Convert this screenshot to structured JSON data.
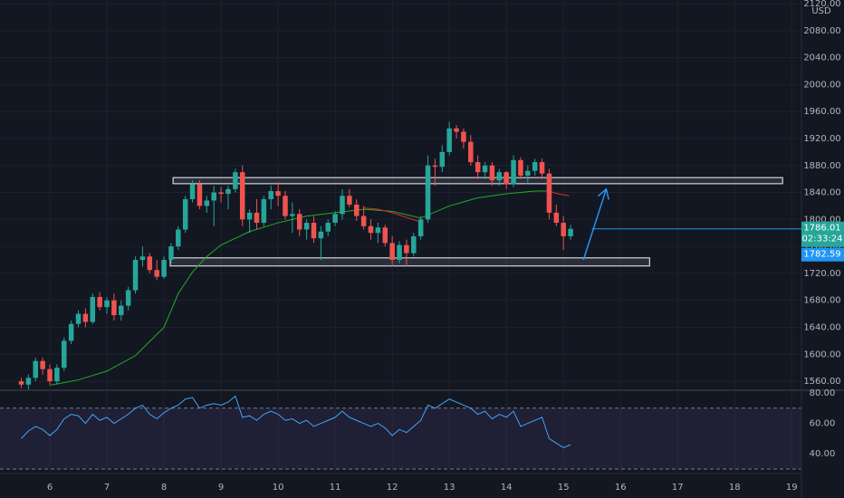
{
  "chart_data": {
    "type": "candlestick",
    "up_color": "#26a69a",
    "down_color": "#ef5350",
    "currency": "USD",
    "xlim": [
      5.127,
      19.17
    ],
    "xticks": [
      6,
      7,
      8,
      9,
      10,
      11,
      12,
      13,
      14,
      15,
      16,
      17,
      18,
      19
    ],
    "ylim": [
      1548,
      2125.4
    ],
    "yticks": [
      {
        "value": 1560,
        "label": "1560.00"
      },
      {
        "value": 1600,
        "label": "1600.00"
      },
      {
        "value": 1640,
        "label": "1640.00"
      },
      {
        "value": 1680,
        "label": "1680.00"
      },
      {
        "value": 1720,
        "label": "1720.00"
      },
      {
        "value": 1760,
        "label": "1760.00"
      },
      {
        "value": 1800,
        "label": "1800.00"
      },
      {
        "value": 1840,
        "label": "1840.00"
      },
      {
        "value": 1880,
        "label": "1880.00"
      },
      {
        "value": 1920,
        "label": "1920.00"
      },
      {
        "value": 1960,
        "label": "1960.00"
      },
      {
        "value": 2000,
        "label": "2000.00"
      },
      {
        "value": 2040,
        "label": "2040.00"
      },
      {
        "value": 2080,
        "label": "2080.00"
      },
      {
        "value": 2120,
        "label": "2120.00"
      }
    ],
    "grid": true,
    "x": [
      5.5,
      5.625,
      5.75,
      5.875,
      6,
      6.125,
      6.25,
      6.375,
      6.5,
      6.625,
      6.75,
      6.875,
      7,
      7.125,
      7.25,
      7.375,
      7.5,
      7.625,
      7.75,
      7.875,
      8,
      8.125,
      8.25,
      8.375,
      8.5,
      8.625,
      8.75,
      8.875,
      9,
      9.125,
      9.25,
      9.375,
      9.5,
      9.625,
      9.75,
      9.875,
      10,
      10.125,
      10.25,
      10.375,
      10.5,
      10.625,
      10.75,
      10.875,
      11,
      11.125,
      11.25,
      11.375,
      11.5,
      11.625,
      11.75,
      11.875,
      12,
      12.125,
      12.25,
      12.375,
      12.5,
      12.625,
      12.75,
      12.875,
      13,
      13.125,
      13.25,
      13.375,
      13.5,
      13.625,
      13.75,
      13.875,
      14,
      14.125,
      14.25,
      14.375,
      14.5,
      14.625,
      14.75,
      14.875,
      15,
      15.125
    ],
    "open": [
      1560,
      1555,
      1565,
      1590,
      1578,
      1560,
      1580,
      1620,
      1645,
      1660,
      1648,
      1685,
      1670,
      1680,
      1658,
      1672,
      1695,
      1740,
      1745,
      1725,
      1715,
      1740,
      1760,
      1785,
      1830,
      1852,
      1820,
      1828,
      1840,
      1838,
      1845,
      1870,
      1800,
      1810,
      1795,
      1830,
      1842,
      1835,
      1805,
      1808,
      1785,
      1795,
      1772,
      1782,
      1795,
      1808,
      1835,
      1822,
      1805,
      1790,
      1780,
      1788,
      1765,
      1740,
      1762,
      1750,
      1775,
      1800,
      1880,
      1878,
      1900,
      1935,
      1930,
      1915,
      1885,
      1870,
      1880,
      1858,
      1870,
      1852,
      1888,
      1865,
      1872,
      1885,
      1868,
      1810,
      1795,
      1775
    ],
    "high": [
      1565,
      1570,
      1595,
      1595,
      1585,
      1585,
      1625,
      1650,
      1665,
      1668,
      1690,
      1692,
      1685,
      1690,
      1680,
      1700,
      1745,
      1760,
      1750,
      1740,
      1745,
      1765,
      1790,
      1835,
      1858,
      1858,
      1835,
      1850,
      1848,
      1850,
      1875,
      1880,
      1815,
      1830,
      1835,
      1850,
      1855,
      1842,
      1825,
      1815,
      1800,
      1805,
      1790,
      1800,
      1812,
      1845,
      1845,
      1830,
      1820,
      1800,
      1795,
      1792,
      1775,
      1768,
      1770,
      1780,
      1805,
      1895,
      1890,
      1910,
      1945,
      1940,
      1935,
      1925,
      1895,
      1885,
      1885,
      1875,
      1872,
      1895,
      1892,
      1880,
      1890,
      1890,
      1875,
      1822,
      1805,
      1792
    ],
    "low": [
      1550,
      1548,
      1560,
      1570,
      1555,
      1555,
      1575,
      1615,
      1640,
      1640,
      1645,
      1665,
      1660,
      1650,
      1650,
      1665,
      1690,
      1730,
      1720,
      1710,
      1712,
      1735,
      1755,
      1780,
      1825,
      1815,
      1810,
      1790,
      1825,
      1815,
      1840,
      1790,
      1780,
      1785,
      1790,
      1815,
      1820,
      1800,
      1780,
      1775,
      1770,
      1765,
      1740,
      1775,
      1790,
      1800,
      1818,
      1798,
      1785,
      1770,
      1765,
      1760,
      1730,
      1735,
      1730,
      1745,
      1770,
      1795,
      1850,
      1870,
      1895,
      1920,
      1905,
      1880,
      1860,
      1860,
      1850,
      1850,
      1845,
      1848,
      1860,
      1855,
      1865,
      1860,
      1800,
      1790,
      1755,
      1770
    ],
    "close": [
      1555,
      1565,
      1590,
      1578,
      1560,
      1580,
      1620,
      1645,
      1660,
      1648,
      1685,
      1670,
      1680,
      1658,
      1672,
      1695,
      1740,
      1745,
      1725,
      1715,
      1740,
      1760,
      1785,
      1830,
      1852,
      1820,
      1828,
      1840,
      1838,
      1845,
      1870,
      1800,
      1810,
      1795,
      1830,
      1842,
      1835,
      1805,
      1808,
      1785,
      1795,
      1772,
      1782,
      1795,
      1808,
      1835,
      1822,
      1805,
      1790,
      1780,
      1788,
      1765,
      1740,
      1762,
      1750,
      1775,
      1800,
      1880,
      1878,
      1900,
      1935,
      1930,
      1915,
      1885,
      1870,
      1880,
      1858,
      1870,
      1852,
      1888,
      1865,
      1872,
      1885,
      1868,
      1810,
      1795,
      1775,
      1786
    ],
    "ma": [
      {
        "color": "#22ab22",
        "x": [
          6,
          6.5,
          7,
          7.5,
          8,
          8.25,
          8.5,
          8.75,
          9,
          9.5,
          10,
          10.5,
          11,
          11.5,
          12,
          12.5,
          13,
          13.5,
          14,
          14.5,
          14.75
        ],
        "values": [
          1554,
          1562,
          1575,
          1598,
          1640,
          1690,
          1722,
          1745,
          1762,
          1782,
          1795,
          1805,
          1810,
          1815,
          1812,
          1802,
          1820,
          1832,
          1838,
          1842,
          1842
        ]
      },
      {
        "color": "#d32f2f",
        "x": [
          11.5,
          11.75,
          12,
          12.25,
          12.5
        ],
        "values": [
          1817,
          1815,
          1810,
          1803,
          1796
        ]
      },
      {
        "color": "#d32f2f",
        "x": [
          14.75,
          14.9,
          15.1
        ],
        "values": [
          1842,
          1838,
          1835
        ]
      }
    ],
    "zones": [
      {
        "start": 8.16,
        "end": 18.84,
        "top": 1862,
        "bottom": 1853
      },
      {
        "start": 8.11,
        "end": 16.51,
        "top": 1743,
        "bottom": 1731
      }
    ],
    "zone_color": "#d1d4dc",
    "arrow": {
      "x": [
        15.35,
        15.75
      ],
      "values": [
        1740,
        1845
      ],
      "color": "#2196f3"
    },
    "price_line": {
      "start": 15.5,
      "value": 1786.01,
      "color": "#2196f3"
    },
    "price_labels": [
      {
        "value": 1786.01,
        "label": "1786.01",
        "color": "#26a69a"
      },
      {
        "value": 1782.59,
        "label": "1782.59",
        "color": "#2196f3"
      }
    ],
    "countdown": "02:33:24",
    "rsi": {
      "color": "#42a5f5",
      "ylim": [
        27.6,
        81.8
      ],
      "yticks": [
        {
          "value": 40,
          "label": "40.00"
        },
        {
          "value": 60,
          "label": "60.00"
        },
        {
          "value": 80,
          "label": "80.00"
        }
      ],
      "bands": [
        70,
        30
      ],
      "band_color": "#7e57c2",
      "values": [
        50,
        55,
        58,
        56,
        52,
        56,
        63,
        66,
        65,
        60,
        66,
        62,
        64,
        60,
        63,
        66,
        70,
        72,
        66,
        63,
        67,
        70,
        72,
        76,
        77,
        70,
        72,
        73,
        72,
        74,
        78,
        64,
        65,
        62,
        66,
        68,
        66,
        62,
        63,
        60,
        62,
        58,
        60,
        62,
        64,
        68,
        64,
        62,
        60,
        58,
        60,
        57,
        52,
        56,
        54,
        58,
        62,
        72,
        70,
        73,
        76,
        74,
        72,
        70,
        66,
        68,
        63,
        66,
        64,
        68,
        58,
        60,
        62,
        64,
        50,
        47,
        44,
        46
      ]
    }
  }
}
